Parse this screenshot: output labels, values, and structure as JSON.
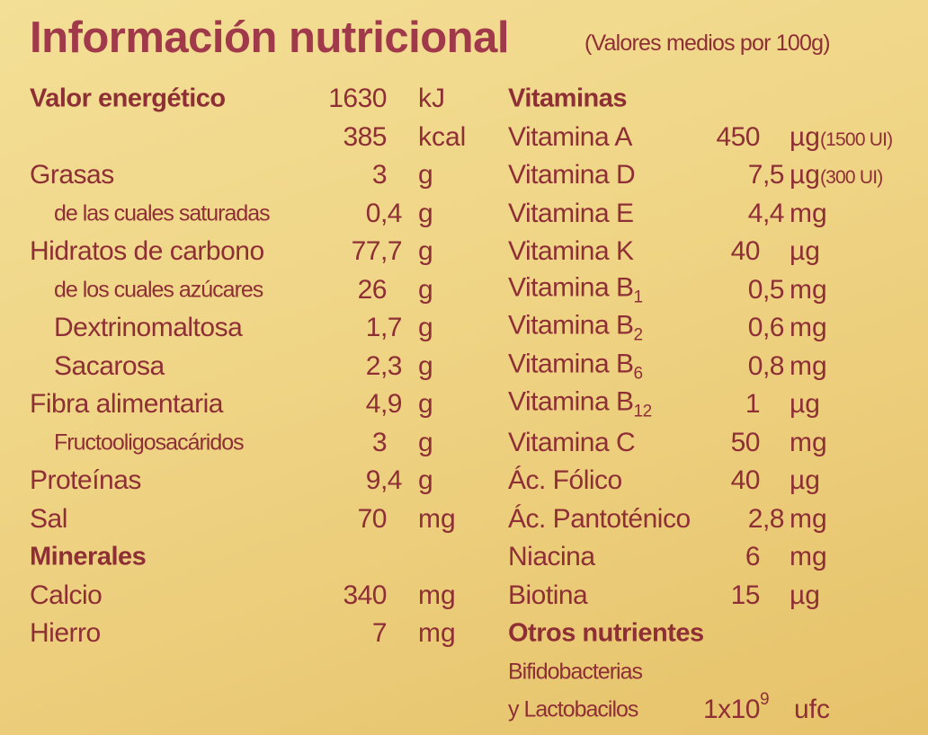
{
  "header": {
    "title": "Información nutricional",
    "subtitle": "(Valores medios por 100g)"
  },
  "left": {
    "rows": [
      {
        "name": "Valor energético",
        "value": "1630",
        "unit": "kJ"
      },
      {
        "name": null,
        "value": "385",
        "unit": "kcal"
      },
      {
        "name": "Grasas",
        "value": "3",
        "unit": "g"
      },
      {
        "name": "de las cuales saturadas",
        "value": "0,4",
        "unit": "g"
      },
      {
        "name": "Hidratos de carbono",
        "value": "77,7",
        "unit": "g"
      },
      {
        "name": "de los cuales azúcares",
        "value": "26",
        "unit": "g"
      },
      {
        "name": "Dextrinomaltosa",
        "value": "1,7",
        "unit": "g"
      },
      {
        "name": "Sacarosa",
        "value": "2,3",
        "unit": "g"
      },
      {
        "name": "Fibra alimentaria",
        "value": "4,9",
        "unit": "g"
      },
      {
        "name": "Fructooligosacáridos",
        "value": "3",
        "unit": "g"
      },
      {
        "name": "Proteínas",
        "value": "9,4",
        "unit": "g"
      },
      {
        "name": "Sal",
        "value": "70",
        "unit": "mg"
      },
      {
        "name": "Minerales"
      },
      {
        "name": "Calcio",
        "value": "340",
        "unit": "mg"
      },
      {
        "name": "Hierro",
        "value": "7",
        "unit": "mg"
      }
    ]
  },
  "right": {
    "rows": [
      {
        "name": "Vitaminas"
      },
      {
        "name": "Vitamina A",
        "value": "450",
        "unit": "µg",
        "note": "(1500 UI)"
      },
      {
        "name": "Vitamina D",
        "value": "7,5",
        "unit": "µg",
        "note": "(300 UI)"
      },
      {
        "name": "Vitamina E",
        "value": "4,4",
        "unit": "mg"
      },
      {
        "name": "Vitamina K",
        "value": "40",
        "unit": "µg"
      },
      {
        "name": "Vitamina B",
        "sub": "1",
        "value": "0,5",
        "unit": "mg"
      },
      {
        "name": "Vitamina B",
        "sub": "2",
        "value": "0,6",
        "unit": "mg"
      },
      {
        "name": "Vitamina B",
        "sub": "6",
        "value": "0,8",
        "unit": "mg"
      },
      {
        "name": "Vitamina B",
        "sub": "12",
        "value": "1",
        "unit": "µg"
      },
      {
        "name": "Vitamina C",
        "value": "50",
        "unit": "mg"
      },
      {
        "name": "Ác. Fólico",
        "value": "40",
        "unit": "µg"
      },
      {
        "name": "Ác. Pantoténico",
        "value": "2,8",
        "unit": "mg"
      },
      {
        "name": "Niacina",
        "value": "6",
        "unit": "mg"
      },
      {
        "name": "Biotina",
        "value": "15",
        "unit": "µg"
      },
      {
        "name": "Otros nutrientes"
      },
      {
        "name": "Bifidobacterias"
      },
      {
        "name": "y Lactobacilos",
        "value": "1x10",
        "sup": "9",
        "unit": "ufc"
      }
    ]
  }
}
